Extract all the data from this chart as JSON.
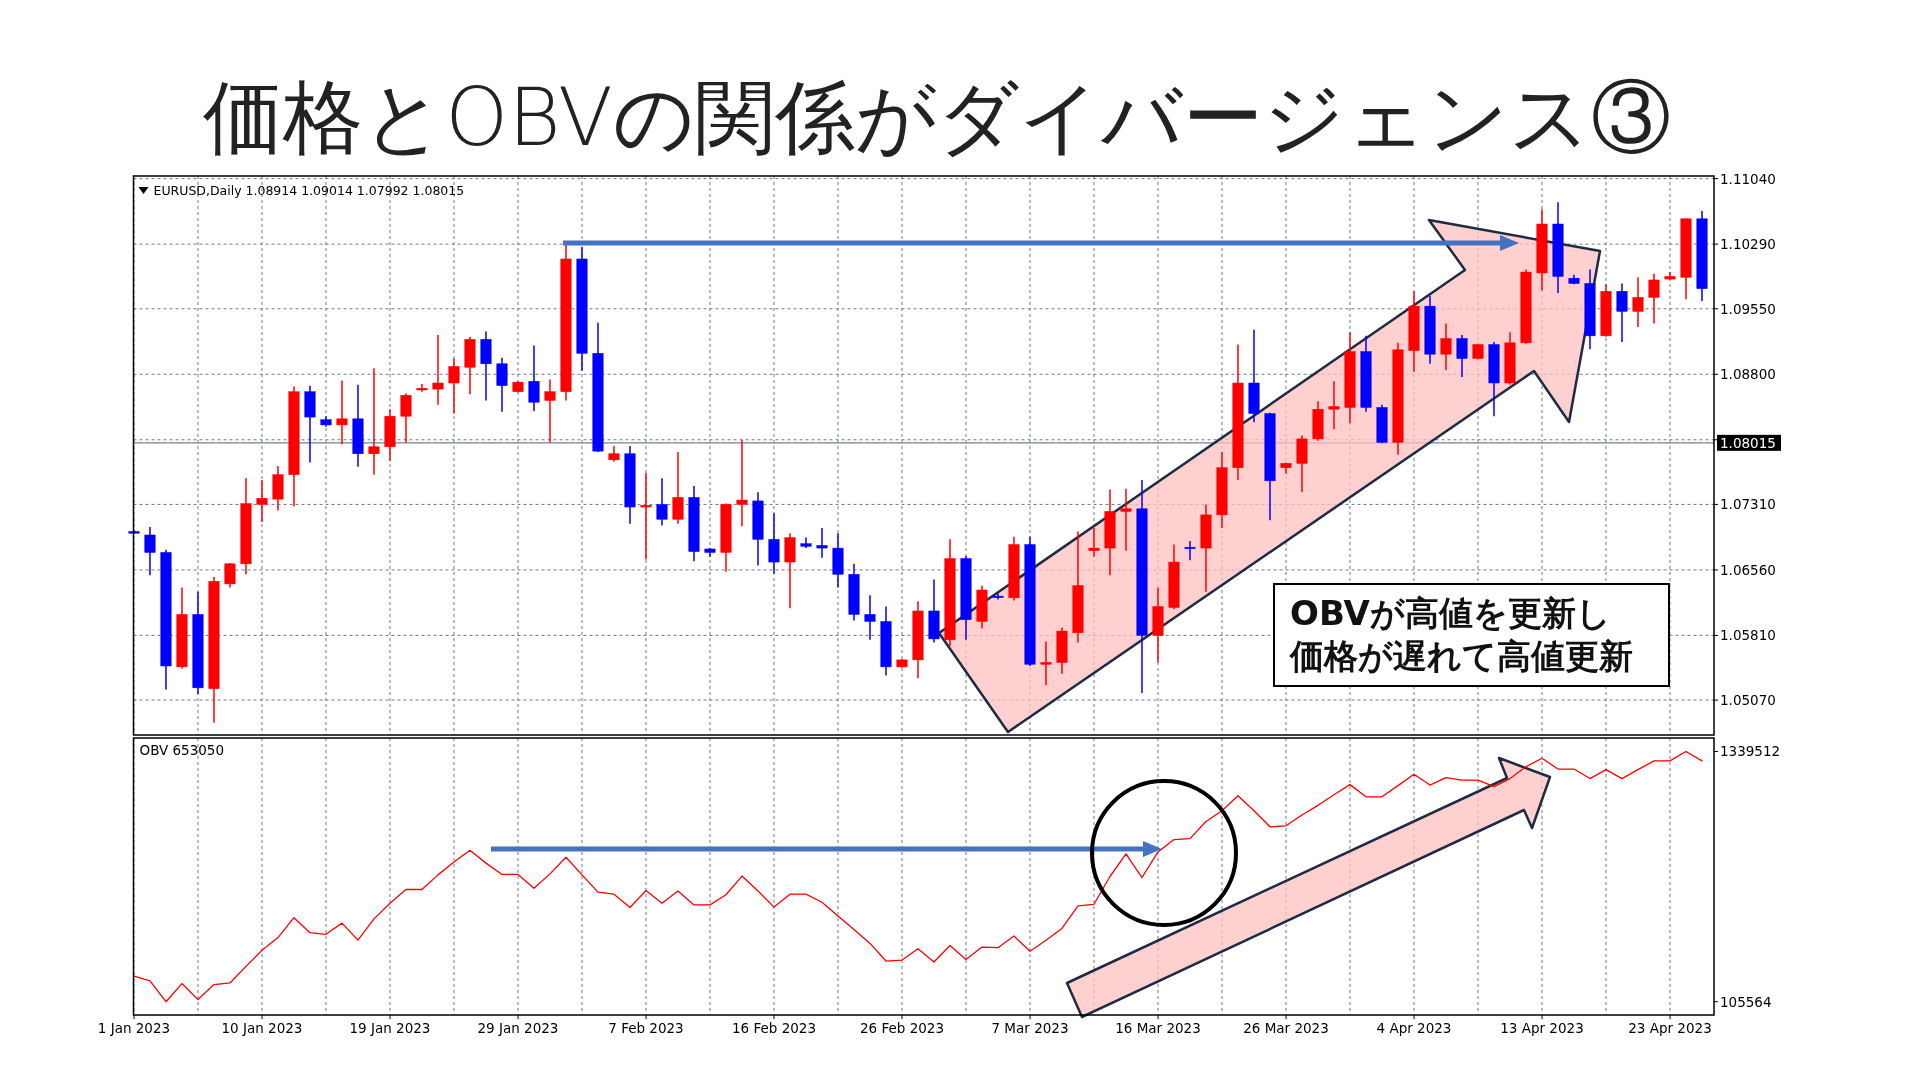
{
  "chart_data": [
    {
      "type": "candlestick",
      "title": "価格とOBVの関係がダイバージェンス③",
      "annotations": [
        "EURUSD,Daily  1.08914 1.09014 1.07992 1.08015",
        "OBVが高値を更新し",
        "価格が遅れて高値更新"
      ],
      "categories": [
        null,
        null,
        null,
        null,
        null,
        null,
        null,
        null,
        null,
        null,
        null,
        null,
        null,
        null,
        null,
        null,
        null,
        null,
        null,
        null,
        null,
        null,
        null,
        null,
        null,
        null,
        null,
        null,
        null,
        null,
        null,
        null,
        null,
        null,
        null,
        null,
        null,
        null,
        null,
        null,
        null,
        null,
        null,
        null,
        null,
        null,
        null,
        null,
        null,
        null,
        null,
        null,
        null,
        null,
        null,
        null,
        null,
        null,
        null,
        null,
        null,
        null,
        null,
        null,
        null,
        null,
        null,
        null,
        null,
        null,
        null,
        null,
        null,
        null,
        null,
        null,
        null,
        null,
        null,
        null,
        null,
        null,
        null,
        null,
        null,
        null,
        null,
        null,
        null,
        null,
        null,
        null,
        null,
        null,
        null,
        null,
        null,
        null,
        null
      ],
      "ohlc": [
        [
          1.07,
          1.0702,
          1.0697,
          1.0698
        ],
        [
          1.0696,
          1.0705,
          1.065,
          1.0676
        ],
        [
          1.0676,
          1.0679,
          1.0519,
          1.0546
        ],
        [
          1.0545,
          1.0636,
          1.0543,
          1.0605
        ],
        [
          1.0605,
          1.0631,
          1.0514,
          1.0521
        ],
        [
          1.052,
          1.0648,
          1.0481,
          1.0643
        ],
        [
          1.064,
          1.0664,
          1.0636,
          1.0663
        ],
        [
          1.0663,
          1.0761,
          1.0651,
          1.0732
        ],
        [
          1.0731,
          1.0759,
          1.0711,
          1.0738
        ],
        [
          1.0737,
          1.0775,
          1.0724,
          1.0765
        ],
        [
          1.0765,
          1.0866,
          1.0729,
          1.086
        ],
        [
          1.086,
          1.0867,
          1.0779,
          1.0831
        ],
        [
          1.0828,
          1.0832,
          1.082,
          1.0822
        ],
        [
          1.0822,
          1.0873,
          1.08,
          1.0829
        ],
        [
          1.0829,
          1.0868,
          1.0774,
          1.0789
        ],
        [
          1.0789,
          1.0887,
          1.0765,
          1.0797
        ],
        [
          1.0797,
          1.084,
          1.0781,
          1.0832
        ],
        [
          1.0832,
          1.0858,
          1.0802,
          1.0856
        ],
        [
          1.0862,
          1.0869,
          1.086,
          1.0864
        ],
        [
          1.0863,
          1.0925,
          1.0845,
          1.087
        ],
        [
          1.087,
          1.0898,
          1.0835,
          1.0889
        ],
        [
          1.0888,
          1.0923,
          1.0857,
          1.092
        ],
        [
          1.092,
          1.0929,
          1.085,
          1.0892
        ],
        [
          1.0892,
          1.0899,
          1.0837,
          1.0867
        ],
        [
          1.086,
          1.0872,
          1.0859,
          1.0871
        ],
        [
          1.0872,
          1.0913,
          1.0838,
          1.0848
        ],
        [
          1.085,
          1.0874,
          1.0802,
          1.086
        ],
        [
          1.086,
          1.1029,
          1.085,
          1.1012
        ],
        [
          1.1012,
          1.1026,
          1.0884,
          1.0904
        ],
        [
          1.0904,
          1.0939,
          1.0791,
          1.0792
        ],
        [
          1.0782,
          1.0798,
          1.078,
          1.0789
        ],
        [
          1.0789,
          1.0798,
          1.0709,
          1.0728
        ],
        [
          1.0728,
          1.0767,
          1.0668,
          1.073
        ],
        [
          1.0731,
          1.0761,
          1.0707,
          1.0714
        ],
        [
          1.0714,
          1.0791,
          1.0709,
          1.0739
        ],
        [
          1.0739,
          1.0752,
          1.0666,
          1.0677
        ],
        [
          1.068,
          1.0681,
          1.0671,
          1.0676
        ],
        [
          1.0676,
          1.0732,
          1.0654,
          1.0731
        ],
        [
          1.0731,
          1.0805,
          1.0706,
          1.0736
        ],
        [
          1.0735,
          1.0745,
          1.0661,
          1.0691
        ],
        [
          1.0691,
          1.0721,
          1.0652,
          1.0665
        ],
        [
          1.0665,
          1.0698,
          1.0612,
          1.0693
        ],
        [
          1.0686,
          1.0693,
          1.0681,
          1.0683
        ],
        [
          1.0684,
          1.0704,
          1.067,
          1.0681
        ],
        [
          1.0681,
          1.0698,
          1.0636,
          1.0651
        ],
        [
          1.0651,
          1.0663,
          1.0598,
          1.0605
        ],
        [
          1.0605,
          1.0627,
          1.0576,
          1.0597
        ],
        [
          1.0597,
          1.0614,
          1.0535,
          1.0545
        ],
        [
          1.0545,
          1.0554,
          1.0544,
          1.0553
        ],
        [
          1.0553,
          1.062,
          1.0532,
          1.0609
        ],
        [
          1.0609,
          1.0645,
          1.0573,
          1.0577
        ],
        [
          1.0576,
          1.0691,
          1.0569,
          1.0669
        ],
        [
          1.0669,
          1.0672,
          1.0576,
          1.0599
        ],
        [
          1.0597,
          1.0638,
          1.0589,
          1.0633
        ],
        [
          1.0626,
          1.0629,
          1.0622,
          1.0625
        ],
        [
          1.0624,
          1.0694,
          1.0621,
          1.0685
        ],
        [
          1.0685,
          1.0694,
          1.0546,
          1.0548
        ],
        [
          1.0548,
          1.0574,
          1.0524,
          1.055
        ],
        [
          1.055,
          1.059,
          1.0537,
          1.0586
        ],
        [
          1.0584,
          1.07,
          1.0573,
          1.0638
        ],
        [
          1.0678,
          1.0704,
          1.0671,
          1.0681
        ],
        [
          1.0681,
          1.0748,
          1.065,
          1.0723
        ],
        [
          1.0723,
          1.0749,
          1.0678,
          1.0726
        ],
        [
          1.0726,
          1.0759,
          1.0515,
          1.0581
        ],
        [
          1.0581,
          1.0636,
          1.055,
          1.0614
        ],
        [
          1.0613,
          1.0685,
          1.0611,
          1.0665
        ],
        [
          1.0682,
          1.0689,
          1.0667,
          1.0681
        ],
        [
          1.0681,
          1.0731,
          1.0631,
          1.0719
        ],
        [
          1.0719,
          1.0791,
          1.0704,
          1.0773
        ],
        [
          1.0773,
          1.0914,
          1.0759,
          1.087
        ],
        [
          1.087,
          1.0931,
          1.0825,
          1.0835
        ],
        [
          1.0835,
          1.0836,
          1.0713,
          1.0758
        ],
        [
          1.0773,
          1.0779,
          1.0766,
          1.0778
        ],
        [
          1.0778,
          1.081,
          1.0745,
          1.0806
        ],
        [
          1.0806,
          1.0849,
          1.0804,
          1.084
        ],
        [
          1.084,
          1.0872,
          1.0817,
          1.0843
        ],
        [
          1.0842,
          1.0928,
          1.0824,
          1.0906
        ],
        [
          1.0906,
          1.0924,
          1.0837,
          1.0842
        ],
        [
          1.0842,
          1.0845,
          1.0801,
          1.0802
        ],
        [
          1.0802,
          1.0916,
          1.0788,
          1.0908
        ],
        [
          1.0907,
          1.0975,
          1.0883,
          1.0958
        ],
        [
          1.0958,
          1.097,
          1.0892,
          1.0903
        ],
        [
          1.0903,
          1.0938,
          1.0885,
          1.0921
        ],
        [
          1.0921,
          1.0925,
          1.0877,
          1.0898
        ],
        [
          1.0898,
          1.0915,
          1.0897,
          1.0914
        ],
        [
          1.0914,
          1.0917,
          1.0832,
          1.087
        ],
        [
          1.087,
          1.0928,
          1.0868,
          1.0916
        ],
        [
          1.0916,
          1.1,
          1.0915,
          1.0997
        ],
        [
          1.0996,
          1.1069,
          1.0976,
          1.1052
        ],
        [
          1.1052,
          1.1077,
          1.0973,
          1.0992
        ],
        [
          1.099,
          1.0994,
          1.0983,
          1.0984
        ],
        [
          1.0984,
          1.1,
          1.0909,
          1.0924
        ],
        [
          1.0924,
          1.0983,
          1.0923,
          1.0975
        ],
        [
          1.0975,
          1.0984,
          1.0917,
          1.0952
        ],
        [
          1.0952,
          1.0991,
          1.0934,
          1.0968
        ],
        [
          1.0968,
          1.0995,
          1.0938,
          1.0988
        ],
        [
          1.0989,
          1.0997,
          1.0988,
          1.0992
        ],
        [
          1.0991,
          1.1058,
          1.0966,
          1.1058
        ],
        [
          1.1058,
          1.1067,
          1.0964,
          1.0978
        ]
      ],
      "colors": [
        "#0000ff",
        "#0000ff",
        "#0000ff",
        "#ff0000",
        "#0000ff",
        "#ff0000",
        "#ff0000",
        "#ff0000",
        "#ff0000",
        "#ff0000",
        "#ff0000",
        "#0000ff",
        "#0000ff",
        "#ff0000",
        "#0000ff",
        "#ff0000",
        "#ff0000",
        "#ff0000",
        "#ff0000",
        "#ff0000",
        "#ff0000",
        "#ff0000",
        "#0000ff",
        "#0000ff",
        "#ff0000",
        "#0000ff",
        "#ff0000",
        "#ff0000",
        "#0000ff",
        "#0000ff",
        "#ff0000",
        "#0000ff",
        "#ff0000",
        "#0000ff",
        "#ff0000",
        "#0000ff",
        "#0000ff",
        "#ff0000",
        "#ff0000",
        "#0000ff",
        "#0000ff",
        "#ff0000",
        "#0000ff",
        "#0000ff",
        "#0000ff",
        "#0000ff",
        "#0000ff",
        "#0000ff",
        "#ff0000",
        "#ff0000",
        "#0000ff",
        "#ff0000",
        "#0000ff",
        "#ff0000",
        "#0000ff",
        "#ff0000",
        "#0000ff",
        "#ff0000",
        "#ff0000",
        "#ff0000",
        "#ff0000",
        "#ff0000",
        "#ff0000",
        "#0000ff",
        "#ff0000",
        "#ff0000",
        "#0000ff",
        "#ff0000",
        "#ff0000",
        "#ff0000",
        "#0000ff",
        "#0000ff",
        "#ff0000",
        "#ff0000",
        "#ff0000",
        "#ff0000",
        "#ff0000",
        "#0000ff",
        "#0000ff",
        "#ff0000",
        "#ff0000",
        "#0000ff",
        "#ff0000",
        "#0000ff",
        "#ff0000",
        "#0000ff",
        "#ff0000",
        "#ff0000",
        "#ff0000",
        "#0000ff",
        "#0000ff",
        "#0000ff",
        "#ff0000",
        "#0000ff",
        "#ff0000",
        "#ff0000",
        "#ff0000",
        "#ff0000",
        "#0000ff"
      ],
      "ylim": [
        1.0467,
        1.1107
      ],
      "yticks": [
        {
          "value": 1.1104,
          "label": "1.11040"
        },
        {
          "value": 1.1029,
          "label": "1.10290"
        },
        {
          "value": 1.0955,
          "label": "1.09550"
        },
        {
          "value": 1.088,
          "label": "1.08800"
        },
        {
          "value": 1.0805,
          "label": null
        },
        {
          "value": 1.0731,
          "label": "1.07310"
        },
        {
          "value": 1.0656,
          "label": "1.06560"
        },
        {
          "value": 1.0581,
          "label": "1.05810"
        },
        {
          "value": 1.0507,
          "label": "1.05070"
        }
      ],
      "ref_lines": [
        {
          "axis": "y",
          "value": 1.08015,
          "label": "1.08015",
          "color": "#708090"
        }
      ],
      "grid": true,
      "tick_labels": "y"
    },
    {
      "type": "line",
      "title": "OBV 653050",
      "categories": [
        "1 Jan 2023",
        null,
        null,
        null,
        null,
        null,
        null,
        null,
        "10 Jan 2023",
        null,
        null,
        null,
        null,
        null,
        null,
        null,
        "19 Jan 2023",
        null,
        null,
        null,
        null,
        null,
        null,
        null,
        "29 Jan 2023",
        null,
        null,
        null,
        null,
        null,
        null,
        null,
        "7 Feb 2023",
        null,
        null,
        null,
        null,
        null,
        null,
        null,
        "16 Feb 2023",
        null,
        null,
        null,
        null,
        null,
        null,
        null,
        "26 Feb 2023",
        null,
        null,
        null,
        null,
        null,
        null,
        null,
        "7 Mar 2023",
        null,
        null,
        null,
        null,
        null,
        null,
        null,
        "16 Mar 2023",
        null,
        null,
        null,
        null,
        null,
        null,
        null,
        "26 Mar 2023",
        null,
        null,
        null,
        null,
        null,
        null,
        null,
        "4 Apr 2023",
        null,
        null,
        null,
        null,
        null,
        null,
        null,
        "13 Apr 2023",
        null,
        null,
        null,
        null,
        null,
        null,
        null,
        "23 Apr 2023",
        null,
        null
      ],
      "values": [
        232000,
        208000,
        105564,
        195000,
        116000,
        190000,
        198000,
        280000,
        359000,
        422000,
        520000,
        446000,
        438000,
        493000,
        409000,
        514000,
        591000,
        659000,
        659000,
        731000,
        794000,
        852000,
        789000,
        733000,
        733000,
        665000,
        736000,
        818000,
        731000,
        646000,
        636000,
        570000,
        654000,
        591000,
        652000,
        583000,
        583000,
        633000,
        725000,
        652000,
        572000,
        636000,
        636000,
        596000,
        528000,
        462000,
        393000,
        306000,
        311000,
        367000,
        301000,
        383000,
        314000,
        375000,
        372000,
        430000,
        354000,
        409000,
        467000,
        578000,
        586000,
        723000,
        834000,
        718000,
        844000,
        905000,
        910000,
        994000,
        1047000,
        1121000,
        1047000,
        968000,
        973000,
        1026000,
        1074000,
        1126000,
        1176000,
        1116000,
        1116000,
        1171000,
        1227000,
        1174000,
        1211000,
        1198000,
        1198000,
        1166000,
        1206000,
        1264000,
        1306000,
        1253000,
        1253000,
        1206000,
        1250000,
        1206000,
        1250000,
        1293000,
        1293000,
        1339512,
        1293000
      ],
      "color": "#ff0000",
      "ylim": [
        40000,
        1406000
      ],
      "yticks": [
        105564,
        1339512
      ],
      "grid": "x",
      "marker": "none",
      "line_style": "solid"
    }
  ]
}
